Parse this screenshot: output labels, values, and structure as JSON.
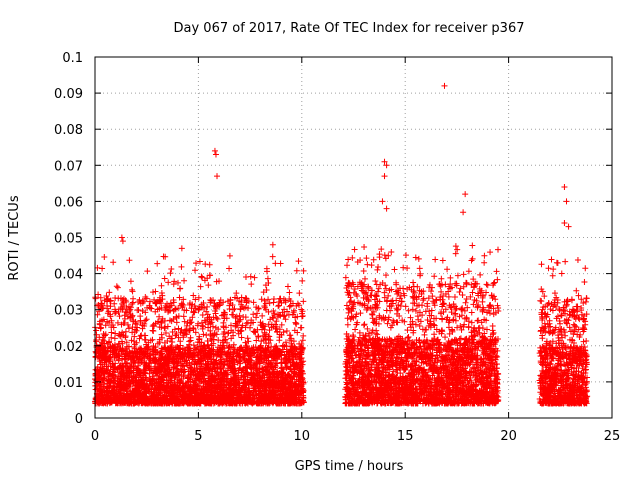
{
  "chart_data": {
    "type": "scatter",
    "title": "Day 067 of 2017, Rate Of TEC Index for receiver p367",
    "xlabel": "GPS time / hours",
    "ylabel": "ROTI / TECUs",
    "xlim": [
      0,
      25
    ],
    "ylim": [
      0,
      0.1
    ],
    "xticks": [
      "0",
      "5",
      "10",
      "15",
      "20",
      "25"
    ],
    "yticks": [
      "0",
      "0.01",
      "0.02",
      "0.03",
      "0.04",
      "0.05",
      "0.06",
      "0.07",
      "0.08",
      "0.09",
      "0.1"
    ],
    "grid": true,
    "marker": "+",
    "color": "#ff0000",
    "data_segments": [
      {
        "x_start": 0.0,
        "x_end": 10.1,
        "typical_range": [
          0.004,
          0.025
        ]
      },
      {
        "x_start": 12.1,
        "x_end": 19.5,
        "typical_range": [
          0.004,
          0.028
        ]
      },
      {
        "x_start": 21.5,
        "x_end": 23.8,
        "typical_range": [
          0.004,
          0.025
        ]
      }
    ],
    "notable_points": [
      {
        "x": 1.3,
        "y": 0.05
      },
      {
        "x": 1.35,
        "y": 0.049
      },
      {
        "x": 4.2,
        "y": 0.047
      },
      {
        "x": 5.8,
        "y": 0.074
      },
      {
        "x": 5.85,
        "y": 0.073
      },
      {
        "x": 5.9,
        "y": 0.067
      },
      {
        "x": 8.6,
        "y": 0.048
      },
      {
        "x": 14.0,
        "y": 0.071
      },
      {
        "x": 14.1,
        "y": 0.07
      },
      {
        "x": 14.0,
        "y": 0.067
      },
      {
        "x": 13.9,
        "y": 0.06
      },
      {
        "x": 14.1,
        "y": 0.058
      },
      {
        "x": 16.9,
        "y": 0.092
      },
      {
        "x": 17.9,
        "y": 0.062
      },
      {
        "x": 17.8,
        "y": 0.057
      },
      {
        "x": 22.7,
        "y": 0.064
      },
      {
        "x": 22.8,
        "y": 0.06
      },
      {
        "x": 22.7,
        "y": 0.054
      },
      {
        "x": 22.9,
        "y": 0.053
      }
    ]
  }
}
